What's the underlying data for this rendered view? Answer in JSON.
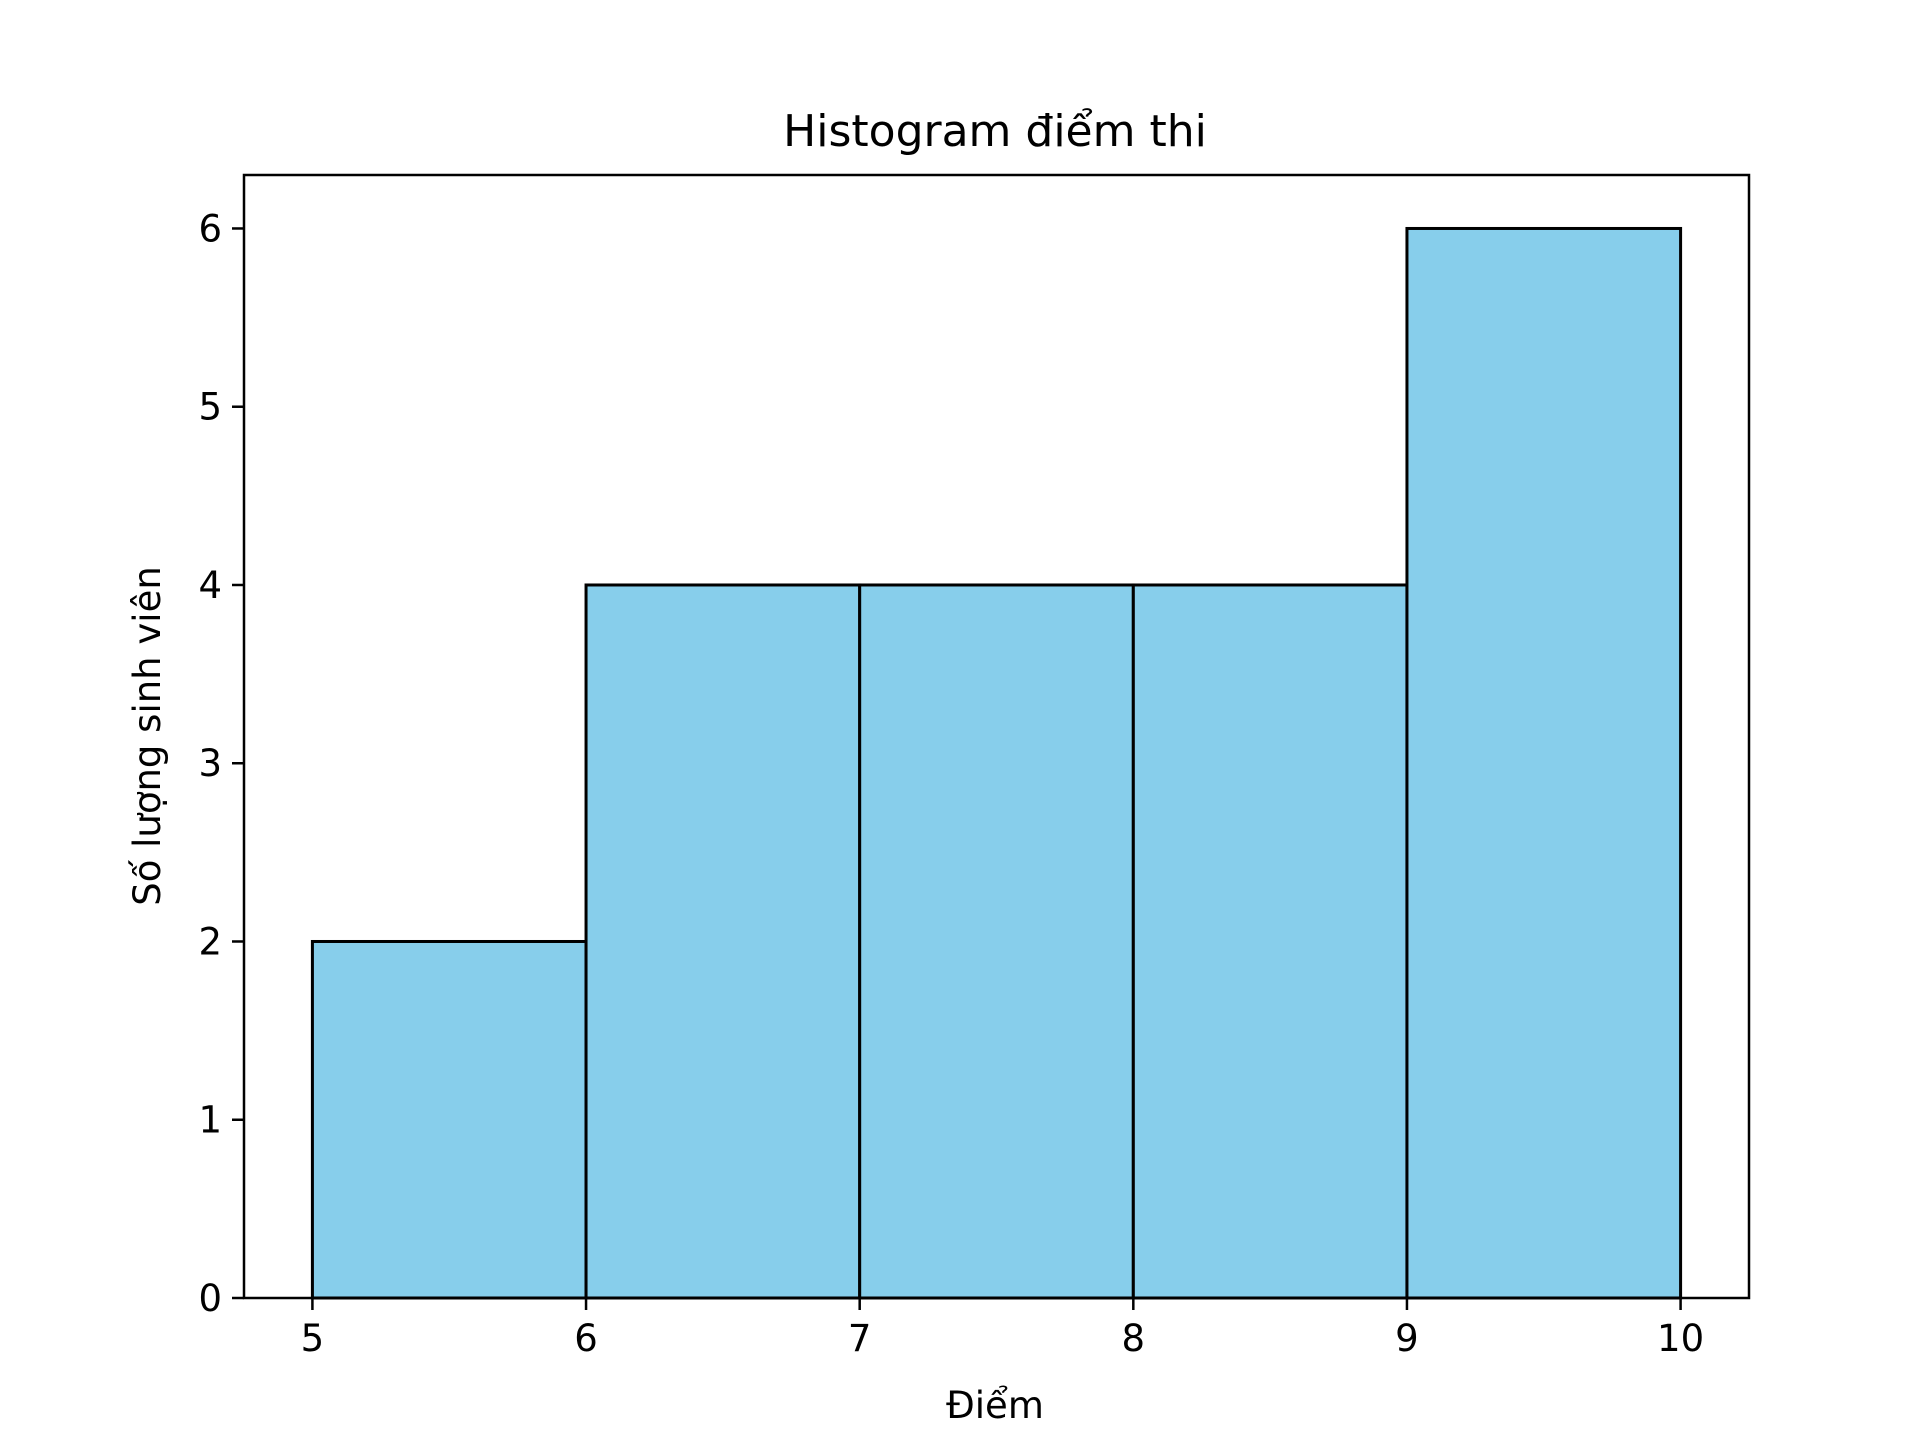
{
  "chart_data": {
    "type": "bar",
    "title": "Histogram điểm thi",
    "xlabel": "Điểm",
    "ylabel": "Số lượng sinh viên",
    "bins": [
      {
        "start": 5,
        "end": 6,
        "count": 2
      },
      {
        "start": 6,
        "end": 7,
        "count": 4
      },
      {
        "start": 7,
        "end": 8,
        "count": 4
      },
      {
        "start": 8,
        "end": 9,
        "count": 4
      },
      {
        "start": 9,
        "end": 10,
        "count": 6
      }
    ],
    "xlim": [
      4.75,
      10.25
    ],
    "ylim": [
      0,
      6.3
    ],
    "xticks": [
      5,
      6,
      7,
      8,
      9,
      10
    ],
    "yticks": [
      0,
      1,
      2,
      3,
      4,
      5,
      6
    ],
    "grid": false,
    "bar_color": "#87ceeb",
    "edge_color": "#000000"
  }
}
